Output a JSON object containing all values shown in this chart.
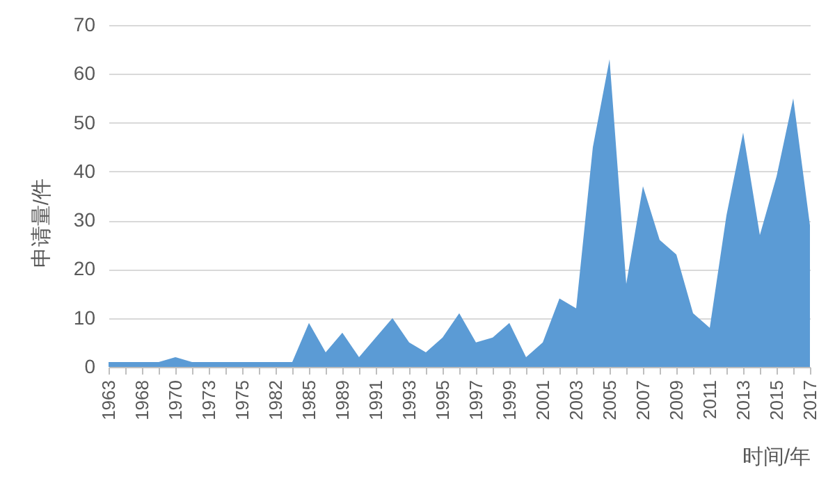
{
  "chart_data": {
    "type": "area",
    "xlabel": "时间/年",
    "ylabel": "申请量/件",
    "categories": [
      "1963",
      null,
      "1968",
      null,
      "1970",
      null,
      "1973",
      null,
      "1975",
      null,
      "1982",
      null,
      "1985",
      null,
      "1989",
      null,
      "1991",
      null,
      "1993",
      null,
      "1995",
      null,
      "1997",
      null,
      "1999",
      null,
      "2001",
      null,
      "2003",
      null,
      "2005",
      null,
      "2007",
      null,
      "2009",
      null,
      "2011",
      null,
      "2013",
      null,
      "2015",
      null,
      "2017"
    ],
    "values": [
      1,
      1,
      1,
      1,
      2,
      1,
      1,
      1,
      1,
      1,
      1,
      1,
      9,
      3,
      7,
      2,
      6,
      10,
      5,
      3,
      6,
      11,
      5,
      6,
      9,
      2,
      5,
      14,
      12,
      45,
      63,
      17,
      37,
      26,
      23,
      11,
      8,
      31,
      48,
      27,
      39,
      55,
      29
    ],
    "color": "#5b9bd5",
    "ylim": [
      0,
      70
    ],
    "yticks": [
      0,
      10,
      20,
      30,
      40,
      50,
      60,
      70
    ],
    "grid": "y"
  }
}
